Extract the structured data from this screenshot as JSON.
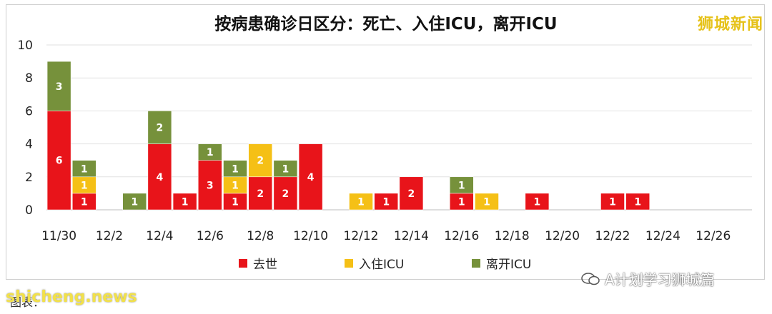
{
  "title": "按病患确诊日区分：死亡、入住ICU，离开ICU",
  "brand": "狮城新闻",
  "wechat_label": "A计划学习狮城篇",
  "watermark": "shicheng.news",
  "source": "图表：",
  "colors": {
    "death": "#e8141a",
    "icu_in": "#f5c016",
    "icu_out": "#76913b"
  },
  "chart_data": {
    "type": "bar",
    "stacked": true,
    "title": "按病患确诊日区分：死亡、入住ICU，离开ICU",
    "categories": [
      "11/30",
      "12/1",
      "12/2",
      "12/3",
      "12/4",
      "12/5",
      "12/6",
      "12/7",
      "12/8",
      "12/9",
      "12/10",
      "12/11",
      "12/12",
      "12/13",
      "12/14",
      "12/15",
      "12/16",
      "12/17",
      "12/18",
      "12/19",
      "12/20",
      "12/21",
      "12/22",
      "12/23",
      "12/24",
      "12/25",
      "12/26",
      "12/27"
    ],
    "tick_labels": [
      "11/30",
      "12/2",
      "12/4",
      "12/6",
      "12/8",
      "12/10",
      "12/12",
      "12/14",
      "12/16",
      "12/18",
      "12/20",
      "12/22",
      "12/24",
      "12/26"
    ],
    "series": [
      {
        "name": "去世",
        "values": [
          6,
          1,
          0,
          0,
          4,
          1,
          3,
          1,
          2,
          2,
          4,
          0,
          0,
          1,
          2,
          0,
          1,
          0,
          0,
          1,
          0,
          0,
          1,
          1,
          0,
          0,
          0,
          0
        ]
      },
      {
        "name": "入住ICU",
        "values": [
          0,
          1,
          0,
          0,
          0,
          0,
          0,
          1,
          2,
          0,
          0,
          0,
          1,
          0,
          0,
          0,
          0,
          1,
          0,
          0,
          0,
          0,
          0,
          0,
          0,
          0,
          0,
          0
        ]
      },
      {
        "name": "离开ICU",
        "values": [
          3,
          1,
          0,
          1,
          2,
          0,
          1,
          1,
          0,
          1,
          0,
          0,
          0,
          0,
          0,
          0,
          1,
          0,
          0,
          0,
          0,
          0,
          0,
          0,
          0,
          0,
          0,
          0
        ]
      }
    ],
    "ylim": [
      0,
      10
    ],
    "yticks": [
      0,
      2,
      4,
      6,
      8,
      10
    ],
    "grid": true,
    "legend": "bottom"
  }
}
